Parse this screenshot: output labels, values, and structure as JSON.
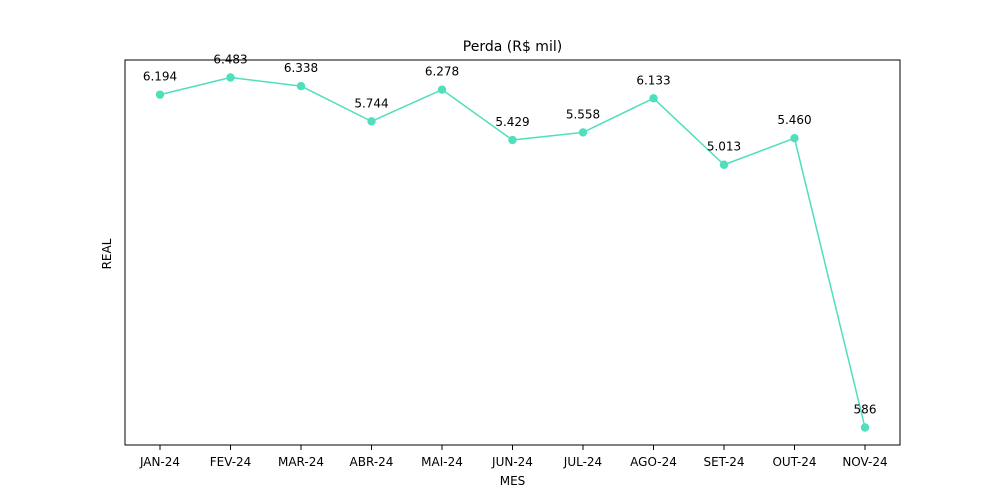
{
  "chart_data": {
    "type": "line",
    "title": "Perda (R$ mil)",
    "xlabel": "MES",
    "ylabel": "REAL",
    "categories": [
      "JAN-24",
      "FEV-24",
      "MAR-24",
      "ABR-24",
      "MAI-24",
      "JUN-24",
      "JUL-24",
      "AGO-24",
      "SET-24",
      "OUT-24",
      "NOV-24"
    ],
    "series": [
      {
        "values": [
          6194,
          6483,
          6338,
          5744,
          6278,
          5429,
          5558,
          6133,
          5013,
          5460,
          586
        ],
        "data_labels": [
          "6.194",
          "6.483",
          "6.338",
          "5.744",
          "6.278",
          "5.429",
          "5.558",
          "6.133",
          "5.013",
          "5.460",
          "586"
        ],
        "color": "#4fdfbc"
      }
    ],
    "grid": false,
    "legend": "none",
    "y_ticks_visible": false
  }
}
